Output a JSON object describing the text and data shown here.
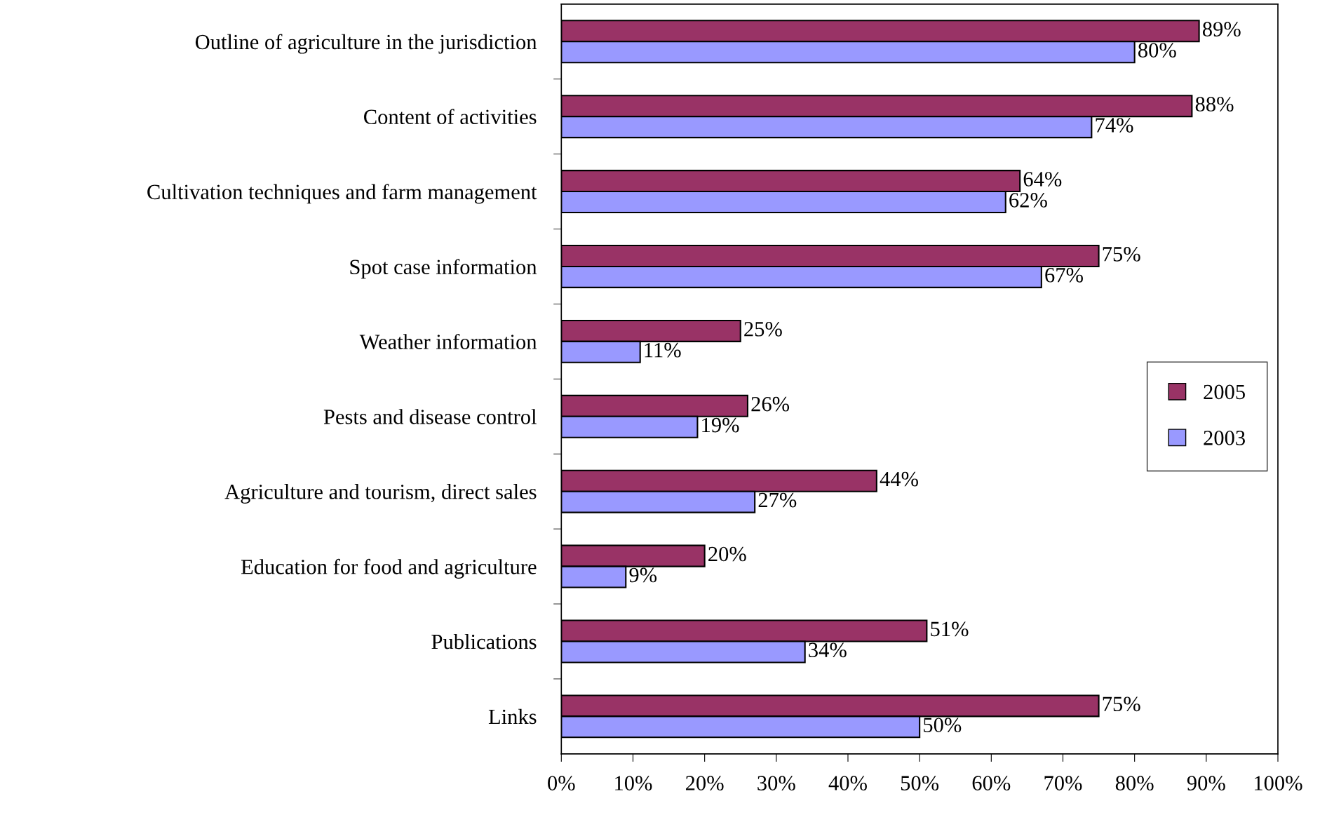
{
  "chart_data": {
    "type": "bar",
    "orientation": "horizontal",
    "categories": [
      "Outline of agriculture in the jurisdiction",
      "Content of activities",
      "Cultivation techniques and farm management",
      "Spot case information",
      "Weather information",
      "Pests and disease control",
      "Agriculture and tourism, direct sales",
      "Education for food and agriculture",
      "Publications",
      "Links"
    ],
    "series": [
      {
        "name": "2005",
        "color": "#993366",
        "values": [
          89,
          88,
          64,
          75,
          25,
          26,
          44,
          20,
          51,
          75
        ],
        "value_labels": [
          "89%",
          "88%",
          "64%",
          "75%",
          "25%",
          "26%",
          "44%",
          "20%",
          "51%",
          "75%"
        ]
      },
      {
        "name": "2003",
        "color": "#9999ff",
        "values": [
          80,
          74,
          62,
          67,
          11,
          19,
          27,
          9,
          34,
          50
        ],
        "value_labels": [
          "80%",
          "74%",
          "62%",
          "67%",
          "11%",
          "19%",
          "27%",
          "9%",
          "34%",
          "50%"
        ]
      }
    ],
    "xlim": [
      0,
      100
    ],
    "xticks": [
      {
        "value": 0,
        "label": "0%"
      },
      {
        "value": 10,
        "label": "10%"
      },
      {
        "value": 20,
        "label": "20%"
      },
      {
        "value": 30,
        "label": "30%"
      },
      {
        "value": 40,
        "label": "40%"
      },
      {
        "value": 50,
        "label": "50%"
      },
      {
        "value": 60,
        "label": "60%"
      },
      {
        "value": 70,
        "label": "70%"
      },
      {
        "value": 80,
        "label": "80%"
      },
      {
        "value": 90,
        "label": "90%"
      },
      {
        "value": 100,
        "label": "100%"
      }
    ],
    "legend": "right",
    "grid": false
  }
}
